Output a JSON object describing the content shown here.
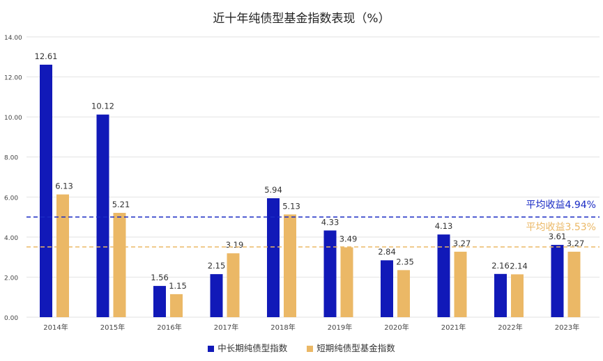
{
  "chart_data": {
    "type": "bar",
    "title": "近十年纯债型基金指数表现（%）",
    "categories": [
      "2014年",
      "2015年",
      "2016年",
      "2017年",
      "2018年",
      "2019年",
      "2020年",
      "2021年",
      "2022年",
      "2023年"
    ],
    "series": [
      {
        "name": "中长期纯债型指数",
        "color": "#1119b8",
        "values": [
          12.61,
          10.12,
          1.56,
          2.15,
          5.94,
          4.33,
          2.84,
          4.13,
          2.16,
          3.61
        ]
      },
      {
        "name": "短期纯债型基金指数",
        "color": "#ebb866",
        "values": [
          6.13,
          5.21,
          1.15,
          3.19,
          5.13,
          3.49,
          2.35,
          3.27,
          2.14,
          3.27
        ]
      }
    ],
    "ylim": [
      0,
      14
    ],
    "yticks": [
      "0.00",
      "2.00",
      "4.00",
      "6.00",
      "8.00",
      "10.00",
      "12.00",
      "14.00"
    ],
    "grid": true,
    "legend": "bottom",
    "reference_lines": [
      {
        "label": "平均收益4.94%",
        "value": 4.94,
        "color": "#1a2bc4"
      },
      {
        "label": "平均收益3.53%",
        "value": 3.53,
        "color": "#ebb866"
      }
    ]
  }
}
